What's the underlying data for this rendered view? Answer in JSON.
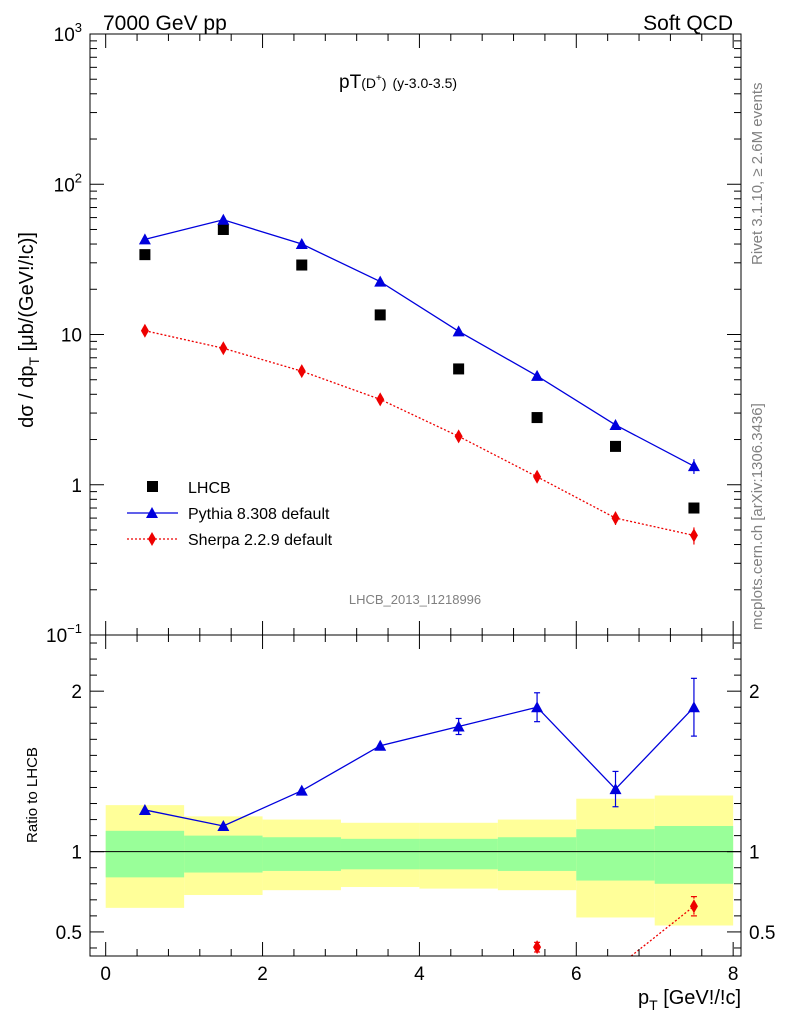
{
  "header": {
    "left": "7000 GeV pp",
    "right": "Soft QCD"
  },
  "side": {
    "rivet": "Rivet 3.1.10, ≥ 2.6M events",
    "mcplots": "mcplots.cern.ch [arXiv:1306.3436]"
  },
  "plot_title": {
    "main": "pT",
    "particle": "(D",
    "sup": "+",
    "close": ")",
    "range": "(y-3.0-3.5)"
  },
  "analysis_id": "LHCB_2013_I1218996",
  "colors": {
    "data": "#000000",
    "pythia": "#0000dd",
    "sherpa": "#ee0000",
    "band_inner": "#99ff99",
    "band_outer": "#ffff99"
  },
  "chart_data": [
    {
      "type": "line",
      "panel": "main",
      "title": "pT(D+) (y-3.0-3.5)",
      "xlabel": "p_T [GeV!/!c]",
      "ylabel": "dσ / dp_T [μb/(GeV!/!c)]",
      "xlim": [
        -0.2,
        8.1
      ],
      "ylim": [
        0.1,
        1000
      ],
      "yscale": "log",
      "yticks": [
        {
          "v": 0.1,
          "b": "10",
          "e": "−1"
        },
        {
          "v": 1,
          "b": "1",
          "e": ""
        },
        {
          "v": 10,
          "b": "10",
          "e": ""
        },
        {
          "v": 100,
          "b": "10",
          "e": "2"
        },
        {
          "v": 1000,
          "b": "10",
          "e": "3"
        }
      ],
      "legend_position": "lower-left",
      "series": [
        {
          "name": "LHCB",
          "style": "square",
          "x": [
            0.5,
            1.5,
            2.5,
            3.5,
            4.5,
            5.5,
            6.5,
            7.5
          ],
          "y": [
            34,
            50,
            29,
            13.5,
            5.9,
            2.8,
            1.8,
            0.7
          ]
        },
        {
          "name": "Pythia 8.308 default",
          "style": "triangle-line",
          "x": [
            0.5,
            1.5,
            2.5,
            3.5,
            4.5,
            5.5,
            6.5,
            7.5
          ],
          "y": [
            43,
            58,
            40,
            22.5,
            10.5,
            5.3,
            2.5,
            1.33
          ],
          "err": [
            0,
            0,
            0,
            0,
            0,
            0,
            0.15,
            0.15
          ]
        },
        {
          "name": "Sherpa 2.2.9 default",
          "style": "diamond-dotted",
          "x": [
            0.5,
            1.5,
            2.5,
            3.5,
            4.5,
            5.5,
            6.5,
            7.5
          ],
          "y": [
            10.6,
            8.1,
            5.7,
            3.7,
            2.1,
            1.13,
            0.6,
            0.46
          ],
          "err": [
            0,
            0,
            0,
            0,
            0,
            0.08,
            0.06,
            0.06
          ]
        }
      ]
    },
    {
      "type": "line",
      "panel": "ratio",
      "xlabel": "p_T [GeV!/!c]",
      "ylabel": "Ratio to LHCB",
      "xlim": [
        -0.2,
        8.1
      ],
      "ylim": [
        0.35,
        2.35
      ],
      "xticks": [
        0,
        2,
        4,
        6,
        8
      ],
      "yticks": [
        0.5,
        1,
        2
      ],
      "bands": {
        "bins": [
          [
            0,
            1
          ],
          [
            1,
            2
          ],
          [
            2,
            3
          ],
          [
            3,
            4
          ],
          [
            4,
            5
          ],
          [
            5,
            6
          ],
          [
            6,
            7
          ],
          [
            7,
            8
          ]
        ],
        "inner": [
          [
            0.84,
            1.13
          ],
          [
            0.87,
            1.1
          ],
          [
            0.88,
            1.09
          ],
          [
            0.89,
            1.08
          ],
          [
            0.89,
            1.08
          ],
          [
            0.88,
            1.09
          ],
          [
            0.82,
            1.14
          ],
          [
            0.8,
            1.16
          ]
        ],
        "outer": [
          [
            0.65,
            1.29
          ],
          [
            0.73,
            1.22
          ],
          [
            0.76,
            1.2
          ],
          [
            0.78,
            1.18
          ],
          [
            0.77,
            1.18
          ],
          [
            0.76,
            1.2
          ],
          [
            0.59,
            1.33
          ],
          [
            0.54,
            1.35
          ]
        ]
      },
      "series": [
        {
          "name": "Pythia 8.308 default",
          "style": "triangle-line",
          "x": [
            0.5,
            1.5,
            2.5,
            3.5,
            4.5,
            5.5,
            6.5,
            7.5
          ],
          "y": [
            1.26,
            1.16,
            1.38,
            1.66,
            1.78,
            1.9,
            1.39,
            1.9
          ],
          "err": [
            0,
            0,
            0,
            0,
            0.05,
            0.09,
            0.11,
            0.18
          ]
        },
        {
          "name": "Sherpa 2.2.9 default",
          "style": "diamond-dotted",
          "x": [
            5.5,
            7.5
          ],
          "y": [
            0.405,
            0.66
          ],
          "err": [
            0.03,
            0.06
          ],
          "note": "line continues below axis toward x=6.5"
        }
      ]
    }
  ]
}
